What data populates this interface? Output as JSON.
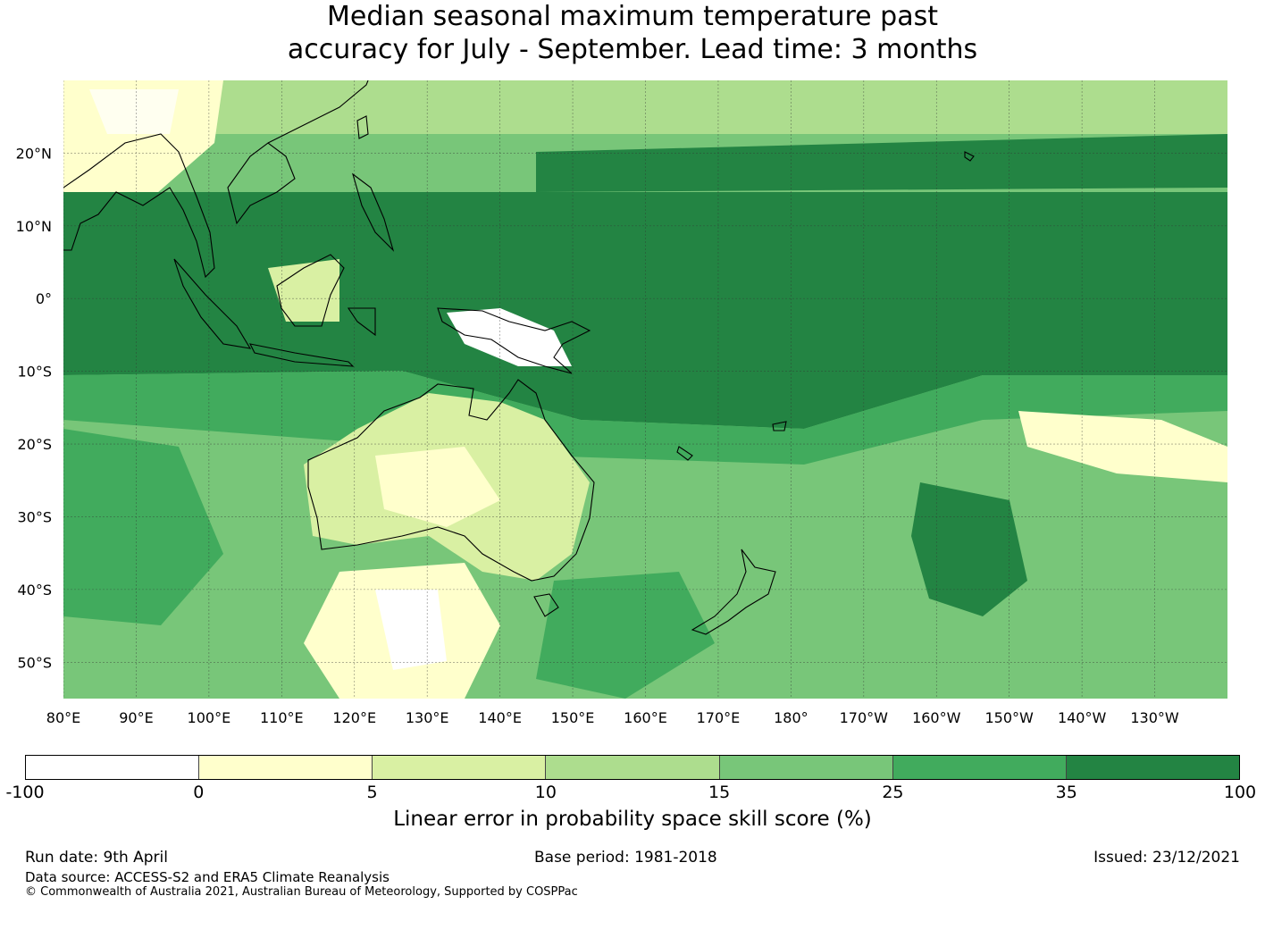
{
  "title": {
    "line1": "Median seasonal maximum temperature past",
    "line2": "accuracy for July - September. Lead time: 3 months"
  },
  "map": {
    "lon_range": [
      "80°E",
      "240°E"
    ],
    "lat_range": [
      "55°S",
      "30°N"
    ],
    "lon_labels": [
      "80°E",
      "90°E",
      "100°E",
      "110°E",
      "120°E",
      "130°E",
      "140°E",
      "150°E",
      "160°E",
      "170°E",
      "180°",
      "170°W",
      "160°W",
      "150°W",
      "140°W",
      "130°W"
    ],
    "lat_labels": [
      "20°N",
      "10°N",
      "0°",
      "10°S",
      "20°S",
      "30°S",
      "40°S",
      "50°S"
    ]
  },
  "colorbar": {
    "colors": [
      "#ffffff",
      "#ffffcc",
      "#d9f0a3",
      "#addd8e",
      "#78c679",
      "#41ab5d",
      "#238443"
    ],
    "ticks": [
      "-100",
      "0",
      "5",
      "10",
      "15",
      "25",
      "35",
      "100"
    ],
    "label": "Linear error in probability space skill score (%)"
  },
  "footer": {
    "run_date": "Run date: 9th April",
    "base_period": "Base period: 1981-2018",
    "issued": "Issued: 23/12/2021",
    "data_source": "Data source: ACCESS-S2 and ERA5 Climate Reanalysis",
    "copyright": "© Commonwealth of Australia 2021, Australian Bureau of Meteorology, Supported by COSPPac"
  }
}
